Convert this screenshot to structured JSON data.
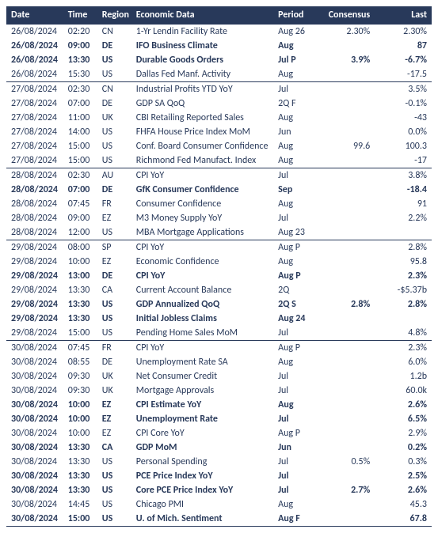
{
  "table": {
    "columns": [
      "Date",
      "Time",
      "Region",
      "Economic Data",
      "Period",
      "Consensus",
      "Last"
    ],
    "rows": [
      {
        "date": "26/08/2024",
        "time": "02:20",
        "region": "CN",
        "data": "1-Yr Lendin Facility Rate",
        "period": "Aug 26",
        "cons": "2.30%",
        "last": "2.30%",
        "bold": false,
        "daystart": true
      },
      {
        "date": "26/08/2024",
        "time": "09:00",
        "region": "DE",
        "data": "IFO Business Climate",
        "period": "Aug",
        "cons": "",
        "last": "87",
        "bold": true,
        "daystart": false
      },
      {
        "date": "26/08/2024",
        "time": "13:30",
        "region": "US",
        "data": "Durable Goods Orders",
        "period": "Jul P",
        "cons": "3.9%",
        "last": "-6.7%",
        "bold": true,
        "daystart": false
      },
      {
        "date": "26/08/2024",
        "time": "15:30",
        "region": "US",
        "data": "Dallas Fed Manf. Activity",
        "period": "Aug",
        "cons": "",
        "last": "-17.5",
        "bold": false,
        "daystart": false
      },
      {
        "date": "27/08/2024",
        "time": "02:30",
        "region": "CN",
        "data": "Industrial Profits YTD YoY",
        "period": "Jul",
        "cons": "",
        "last": "3.5%",
        "bold": false,
        "daystart": true
      },
      {
        "date": "27/08/2024",
        "time": "07:00",
        "region": "DE",
        "data": "GDP SA QoQ",
        "period": "2Q F",
        "cons": "",
        "last": "-0.1%",
        "bold": false,
        "daystart": false
      },
      {
        "date": "27/08/2024",
        "time": "11:00",
        "region": "UK",
        "data": "CBI Retailing Reported Sales",
        "period": "Aug",
        "cons": "",
        "last": "-43",
        "bold": false,
        "daystart": false
      },
      {
        "date": "27/08/2024",
        "time": "14:00",
        "region": "US",
        "data": "FHFA House Price Index MoM",
        "period": "Jun",
        "cons": "",
        "last": "0.0%",
        "bold": false,
        "daystart": false
      },
      {
        "date": "27/08/2024",
        "time": "15:00",
        "region": "US",
        "data": "Conf. Board Consumer Confidence",
        "period": "Aug",
        "cons": "99.6",
        "last": "100.3",
        "bold": false,
        "daystart": false
      },
      {
        "date": "27/08/2024",
        "time": "15:00",
        "region": "US",
        "data": "Richmond Fed Manufact. Index",
        "period": "Aug",
        "cons": "",
        "last": "-17",
        "bold": false,
        "daystart": false
      },
      {
        "date": "28/08/2024",
        "time": "02:30",
        "region": "AU",
        "data": "CPI YoY",
        "period": "Jul",
        "cons": "",
        "last": "3.8%",
        "bold": false,
        "daystart": true
      },
      {
        "date": "28/08/2024",
        "time": "07:00",
        "region": "DE",
        "data": "GfK Consumer Confidence",
        "period": "Sep",
        "cons": "",
        "last": "-18.4",
        "bold": true,
        "daystart": false
      },
      {
        "date": "28/08/2024",
        "time": "07:45",
        "region": "FR",
        "data": "Consumer Confidence",
        "period": "Aug",
        "cons": "",
        "last": "91",
        "bold": false,
        "daystart": false
      },
      {
        "date": "28/08/2024",
        "time": "09:00",
        "region": "EZ",
        "data": "M3 Money Supply YoY",
        "period": "Jul",
        "cons": "",
        "last": "2.2%",
        "bold": false,
        "daystart": false
      },
      {
        "date": "28/08/2024",
        "time": "12:00",
        "region": "US",
        "data": "MBA Mortgage Applications",
        "period": "Aug 23",
        "cons": "",
        "last": "",
        "bold": false,
        "daystart": false
      },
      {
        "date": "29/08/2024",
        "time": "08:00",
        "region": "SP",
        "data": "CPI YoY",
        "period": "Aug P",
        "cons": "",
        "last": "2.8%",
        "bold": false,
        "daystart": true
      },
      {
        "date": "29/08/2024",
        "time": "10:00",
        "region": "EZ",
        "data": "Economic Confidence",
        "period": "Aug",
        "cons": "",
        "last": "95.8",
        "bold": false,
        "daystart": false
      },
      {
        "date": "29/08/2024",
        "time": "13:00",
        "region": "DE",
        "data": "CPI YoY",
        "period": "Aug P",
        "cons": "",
        "last": "2.3%",
        "bold": true,
        "daystart": false
      },
      {
        "date": "29/08/2024",
        "time": "13:30",
        "region": "CA",
        "data": "Current Account Balance",
        "period": "2Q",
        "cons": "",
        "last": "-$5.37b",
        "bold": false,
        "daystart": false
      },
      {
        "date": "29/08/2024",
        "time": "13:30",
        "region": "US",
        "data": "GDP Annualized QoQ",
        "period": "2Q S",
        "cons": "2.8%",
        "last": "2.8%",
        "bold": true,
        "daystart": false
      },
      {
        "date": "29/08/2024",
        "time": "13:30",
        "region": "US",
        "data": "Initial Jobless Claims",
        "period": "Aug 24",
        "cons": "",
        "last": "",
        "bold": true,
        "daystart": false
      },
      {
        "date": "29/08/2024",
        "time": "15:00",
        "region": "US",
        "data": "Pending Home Sales MoM",
        "period": "Jul",
        "cons": "",
        "last": "4.8%",
        "bold": false,
        "daystart": false
      },
      {
        "date": "30/08/2024",
        "time": "07:45",
        "region": "FR",
        "data": "CPI YoY",
        "period": "Aug P",
        "cons": "",
        "last": "2.3%",
        "bold": false,
        "daystart": true
      },
      {
        "date": "30/08/2024",
        "time": "08:55",
        "region": "DE",
        "data": "Unemployment  Rate SA",
        "period": "Aug",
        "cons": "",
        "last": "6.0%",
        "bold": false,
        "daystart": false
      },
      {
        "date": "30/08/2024",
        "time": "09:30",
        "region": "UK",
        "data": "Net Consumer Credit",
        "period": "Jul",
        "cons": "",
        "last": "1.2b",
        "bold": false,
        "daystart": false
      },
      {
        "date": "30/08/2024",
        "time": "09:30",
        "region": "UK",
        "data": "Mortgage Approvals",
        "period": "Jul",
        "cons": "",
        "last": "60.0k",
        "bold": false,
        "daystart": false
      },
      {
        "date": "30/08/2024",
        "time": "10:00",
        "region": "EZ",
        "data": "CPI Estimate YoY",
        "period": "Aug",
        "cons": "",
        "last": "2.6%",
        "bold": true,
        "daystart": false
      },
      {
        "date": "30/08/2024",
        "time": "10:00",
        "region": "EZ",
        "data": "Unemployment Rate",
        "period": "Jul",
        "cons": "",
        "last": "6.5%",
        "bold": true,
        "daystart": false
      },
      {
        "date": "30/08/2024",
        "time": "10:00",
        "region": "EZ",
        "data": "CPI Core YoY",
        "period": "Aug P",
        "cons": "",
        "last": "2.9%",
        "bold": false,
        "daystart": false
      },
      {
        "date": "30/08/2024",
        "time": "13:30",
        "region": "CA",
        "data": "GDP MoM",
        "period": "Jun",
        "cons": "",
        "last": "0.2%",
        "bold": true,
        "daystart": false
      },
      {
        "date": "30/08/2024",
        "time": "13:30",
        "region": "US",
        "data": "Personal Spending",
        "period": "Jul",
        "cons": "0.5%",
        "last": "0.3%",
        "bold": false,
        "daystart": false
      },
      {
        "date": "30/08/2024",
        "time": "13:30",
        "region": "US",
        "data": "PCE Price Index YoY",
        "period": "Jul",
        "cons": "",
        "last": "2.5%",
        "bold": true,
        "daystart": false
      },
      {
        "date": "30/08/2024",
        "time": "13:30",
        "region": "US",
        "data": "Core PCE Price Index YoY",
        "period": "Jul",
        "cons": "2.7%",
        "last": "2.6%",
        "bold": true,
        "daystart": false
      },
      {
        "date": "30/08/2024",
        "time": "14:45",
        "region": "US",
        "data": "Chicago PMI",
        "period": "Aug",
        "cons": "",
        "last": "45.3",
        "bold": false,
        "daystart": false
      },
      {
        "date": "30/08/2024",
        "time": "15:00",
        "region": "US",
        "data": "U. of Mich. Sentiment",
        "period": "Aug F",
        "cons": "",
        "last": "67.8",
        "bold": true,
        "daystart": false
      }
    ]
  }
}
